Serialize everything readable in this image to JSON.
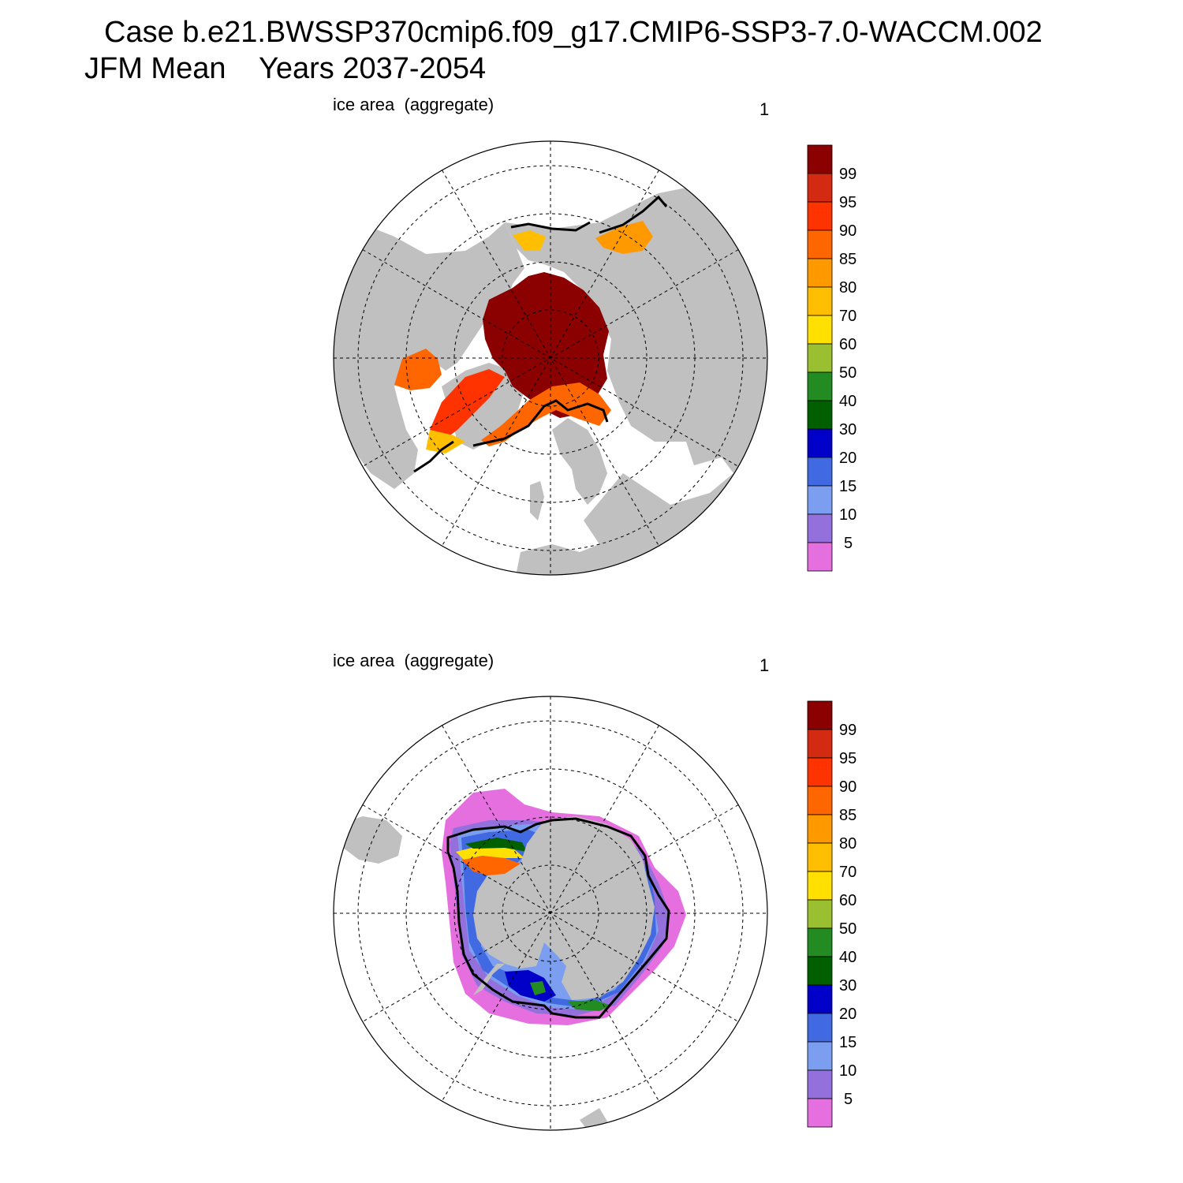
{
  "title": {
    "line1": "Case b.e21.BWSSP370cmip6.f09_g17.CMIP6-SSP3-7.0-WACCM.002",
    "line2": "JFM Mean    Years 2037-2054"
  },
  "panels": [
    {
      "id": "north",
      "label": "ice area  (aggregate)",
      "number": "1"
    },
    {
      "id": "south",
      "label": "ice area  (aggregate)",
      "number": "1"
    }
  ],
  "colorbar": {
    "labels": [
      "99",
      "95",
      "90",
      "85",
      "80",
      "70",
      "60",
      "50",
      "40",
      "30",
      "20",
      "15",
      "10",
      "5"
    ],
    "colors": [
      "#8b0000",
      "#d42a12",
      "#ff3300",
      "#ff6600",
      "#ff9900",
      "#ffbf00",
      "#ffe000",
      "#9abf30",
      "#228b22",
      "#006000",
      "#0000c8",
      "#4169e1",
      "#7b9ef0",
      "#9370db",
      "#e66fe0"
    ]
  },
  "colors": {
    "land": "#c0c0c0",
    "ocean": "#ffffff",
    "edge_line": "#000000"
  }
}
